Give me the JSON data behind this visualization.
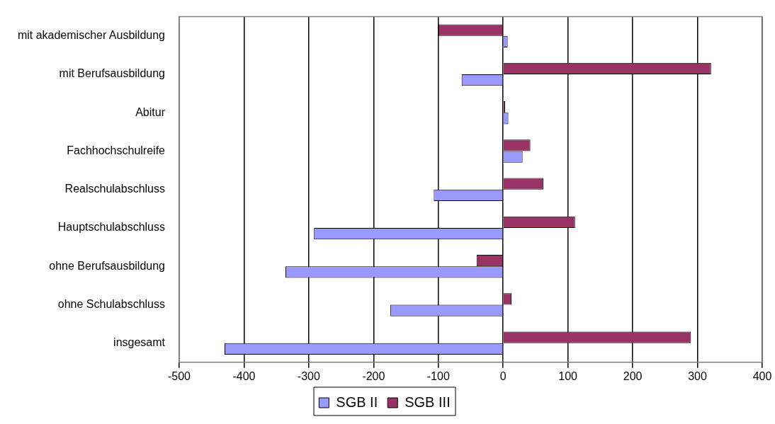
{
  "chart_data": {
    "type": "bar",
    "orientation": "horizontal",
    "categories": [
      "mit akademischer Ausbildung",
      "mit Berufsausbildung",
      "Abitur",
      "Fachhochschulreife",
      "Realschulabschluss",
      "Hauptschulabschluss",
      "ohne Berufsausbildung",
      "ohne Schulabschluss",
      "insgesamt"
    ],
    "series": [
      {
        "name": "SGB II",
        "color": "#9999ff",
        "values": [
          7,
          -64,
          8,
          30,
          -107,
          -292,
          -336,
          -174,
          -430
        ]
      },
      {
        "name": "SGB III",
        "color": "#993366",
        "values": [
          -100,
          321,
          3,
          42,
          62,
          111,
          -41,
          13,
          290
        ]
      }
    ],
    "xlim": [
      -500,
      400
    ],
    "xticks": [
      -500,
      -400,
      -300,
      -200,
      -100,
      0,
      100,
      200,
      300,
      400
    ],
    "grid": "x",
    "legend": "bottom"
  }
}
